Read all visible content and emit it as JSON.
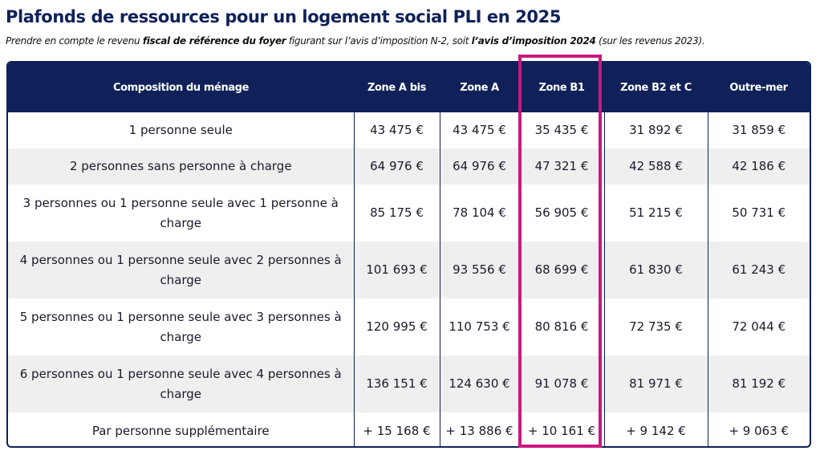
{
  "title": "Plafonds de ressources pour un logement social PLI en 2025",
  "subtitle": {
    "part1": "Prendre en compte le revenu ",
    "bold1": "fiscal de référence du foyer",
    "part2": " figurant sur l’avis d’imposition N-2, soit ",
    "bold2": "l’avis d’imposition 2024",
    "part3": " (sur les revenus 2023)."
  },
  "table": {
    "headers": [
      "Composition du ménage",
      "Zone A bis",
      "Zone A",
      "Zone B1",
      "Zone B2 et C",
      "Outre-mer"
    ],
    "rows": [
      {
        "label": "1 personne seule",
        "values": [
          "43 475 €",
          "43 475 €",
          "35 435 €",
          "31 892 €",
          "31 859 €"
        ]
      },
      {
        "label": "2 personnes sans personne à charge",
        "values": [
          "64 976 €",
          "64 976 €",
          "47 321 €",
          "42 588 €",
          "42 186 €"
        ]
      },
      {
        "label": "3 personnes ou 1 personne seule avec 1 personne à charge",
        "values": [
          "85 175 €",
          "78 104 €",
          "56 905 €",
          "51 215 €",
          "50 731 €"
        ]
      },
      {
        "label": "4 personnes ou 1 personne seule avec 2 personnes à charge",
        "values": [
          "101 693 €",
          "93 556 €",
          "68 699 €",
          "61 830 €",
          "61 243 €"
        ]
      },
      {
        "label": "5 personnes ou 1 personne seule avec 3 personnes à charge",
        "values": [
          "120 995 €",
          "110 753 €",
          "80 816 €",
          "72 735 €",
          "72 044 €"
        ]
      },
      {
        "label": "6 personnes ou 1 personne seule avec 4 personnes à charge",
        "values": [
          "136 151 €",
          "124 630 €",
          "91 078 €",
          "81 971 €",
          "81 192 €"
        ]
      },
      {
        "label": "Par personne supplémentaire",
        "values": [
          "+ 15 168 €",
          "+ 13 886 €",
          "+ 10 161 €",
          "+ 9 142 €",
          "+ 9 063 €"
        ]
      }
    ]
  },
  "colors": {
    "header_bg": "#0f2158",
    "highlight": "#c8197f",
    "row_shade": "#efefef"
  }
}
